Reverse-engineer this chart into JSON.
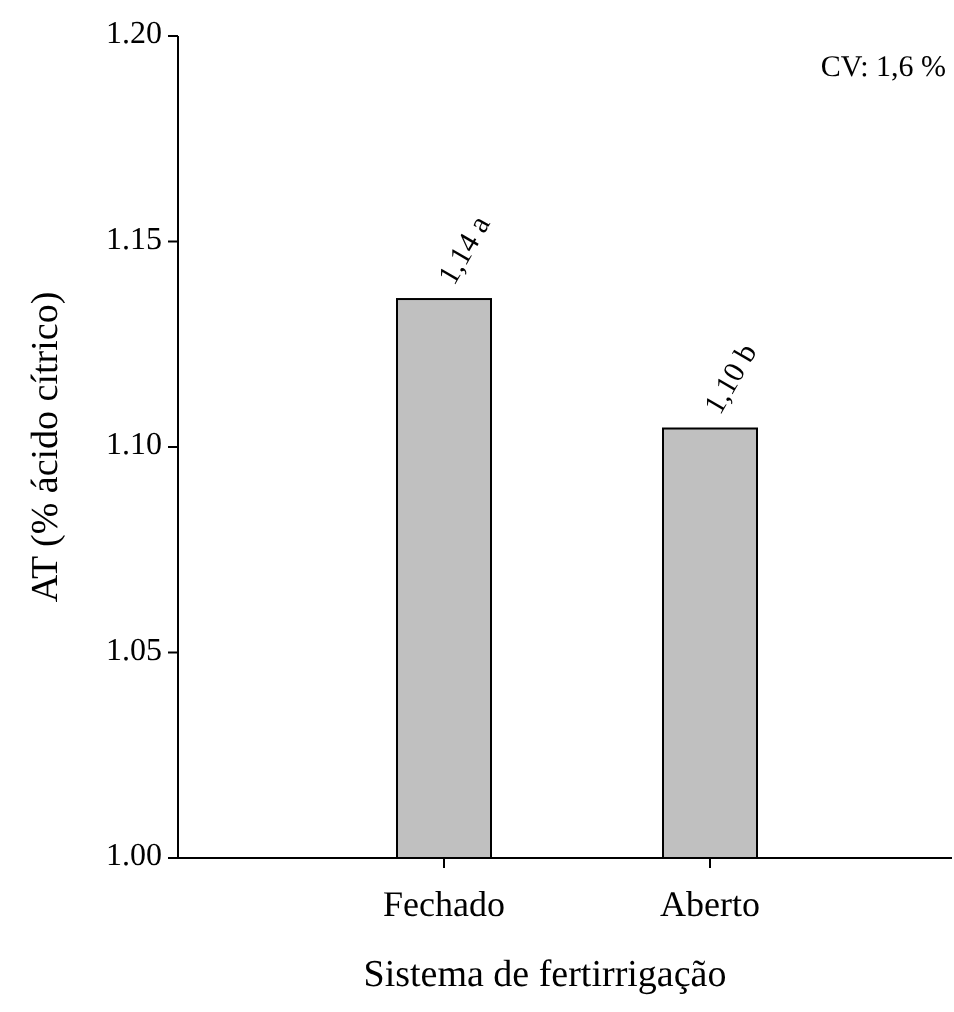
{
  "chart_data": {
    "type": "bar",
    "xlabel": "Sistema de fertirrigação",
    "ylabel": "AT (% ácido cítrico)",
    "categories": [
      "Fechado",
      "Aberto"
    ],
    "values": [
      1.136,
      1.1045
    ],
    "value_labels": [
      "1,14 a",
      "1,10 b"
    ],
    "color": "#c0c0c0",
    "ylim": [
      1.0,
      1.2
    ],
    "yticks": [
      {
        "value": 1.0,
        "label": "1.00"
      },
      {
        "value": 1.05,
        "label": "1.05"
      },
      {
        "value": 1.1,
        "label": "1.10"
      },
      {
        "value": 1.15,
        "label": "1.15"
      },
      {
        "value": 1.2,
        "label": "1.20"
      }
    ],
    "grid": false,
    "annotations": [
      "CV: 1,6 %"
    ]
  }
}
